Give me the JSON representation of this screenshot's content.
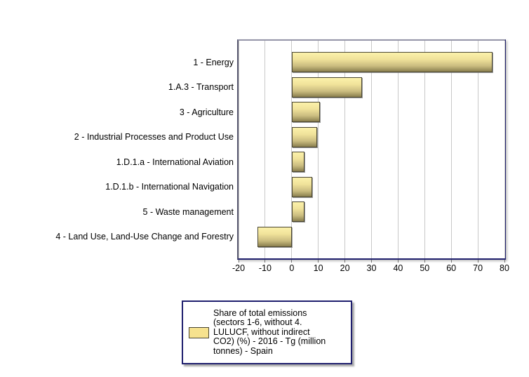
{
  "chart_data": {
    "type": "bar",
    "orientation": "horizontal",
    "title": "",
    "xlabel": "",
    "ylabel": "",
    "grid": true,
    "categories": [
      "1 - Energy",
      "1.A.3 - Transport",
      "3 - Agriculture",
      "2 - Industrial Processes and Product Use",
      "1.D.1.a - International Aviation",
      "1.D.1.b - International Navigation",
      "5 - Waste management",
      "4 - Land Use, Land-Use Change and Forestry"
    ],
    "values": [
      75.4,
      26.5,
      10.7,
      9.6,
      4.9,
      7.7,
      4.7,
      -13.0
    ],
    "xlim": [
      -20,
      80
    ],
    "x_ticks": [
      -20,
      -10,
      0,
      10,
      20,
      30,
      40,
      50,
      60,
      70,
      80
    ],
    "x_tick_labels": [
      "-20",
      "-10",
      "0",
      "10",
      "20",
      "30",
      "40",
      "50",
      "60",
      "70",
      "80"
    ],
    "legend": {
      "position": "bottom",
      "label": "Share of total emissions (sectors 1-6, without 4. LULUCF, without indirect CO2) (%) - 2016 - Tg (million tonnes) - Spain",
      "lines": [
        "Share of total emissions",
        "(sectors 1-6, without 4.",
        "LULUCF, without indirect",
        "CO2) (%) - 2016 - Tg (million",
        "tonnes) - Spain"
      ]
    }
  },
  "colors": {
    "background": "#FFFFFF",
    "text": "#000000",
    "gridline": "#C8C8C8",
    "plot_border": "#20206E",
    "plot_border_top": "#9595A8",
    "plot_border_left": "#5A5A72",
    "tick_mark": "#707070",
    "bar_border": "#4A4632",
    "bar_gradient": [
      "#FCF2AB",
      "#F0E29A",
      "#CBBD80",
      "#8A7F4E"
    ],
    "legend_border": "#1F1F6E",
    "legend_swatch_fill": "#F6E28E"
  }
}
